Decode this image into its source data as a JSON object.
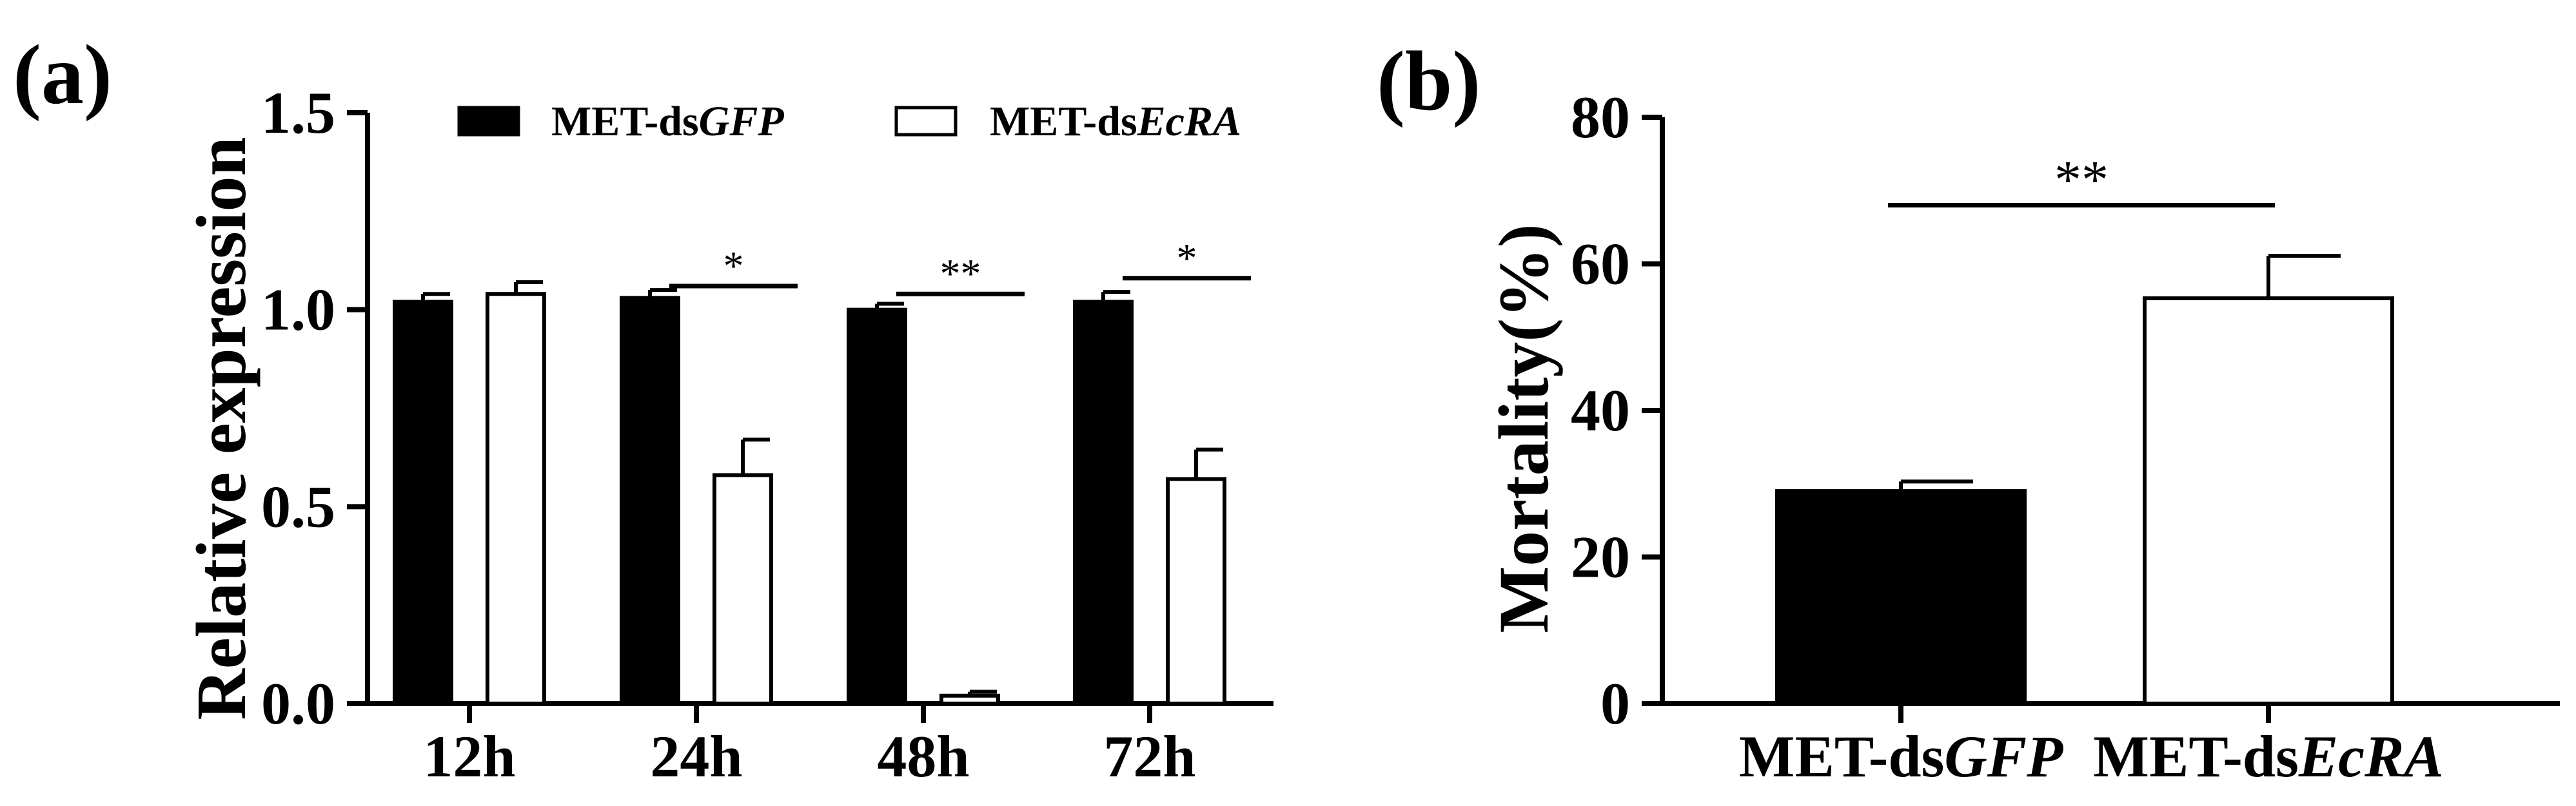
{
  "figure": {
    "panels": [
      {
        "id": "a",
        "label": "(a)",
        "chart_data": {
          "type": "bar",
          "title": "",
          "xlabel": "",
          "ylabel": "Relative expression",
          "ylim": [
            0,
            1.5
          ],
          "yticks": [
            "0.0",
            "0.5",
            "1.0",
            "1.5"
          ],
          "categories": [
            "12h",
            "24h",
            "48h",
            "72h"
          ],
          "grid": false,
          "legend_position": "top",
          "series": [
            {
              "name_prefix": "MET-ds",
              "name_gene": "GFP",
              "fill": "#000000",
              "values": [
                1.02,
                1.03,
                1.0,
                1.02
              ],
              "errors": [
                0.02,
                0.02,
                0.015,
                0.025
              ]
            },
            {
              "name_prefix": "MET-ds",
              "name_gene": "EcRA",
              "fill": "#ffffff",
              "values": [
                1.04,
                0.58,
                0.02,
                0.57
              ],
              "errors": [
                0.03,
                0.09,
                0.01,
                0.075
              ]
            }
          ],
          "annotations": [
            {
              "category_index": 1,
              "text": "*",
              "y": 1.06
            },
            {
              "category_index": 2,
              "text": "**",
              "y": 1.04
            },
            {
              "category_index": 3,
              "text": "*",
              "y": 1.08
            }
          ]
        }
      },
      {
        "id": "b",
        "label": "(b)",
        "chart_data": {
          "type": "bar",
          "title": "",
          "xlabel": "",
          "ylabel": "Mortality(%)",
          "ylim": [
            0,
            80
          ],
          "yticks": [
            "0",
            "20",
            "40",
            "60",
            "80"
          ],
          "grid": false,
          "categories": [
            {
              "prefix": "MET-ds",
              "gene": "GFP"
            },
            {
              "prefix": "MET-ds",
              "gene": "EcRA"
            }
          ],
          "values": [
            29,
            55.3
          ],
          "errors": [
            1.3,
            5.8
          ],
          "fills": [
            "#000000",
            "#ffffff"
          ],
          "annotations": [
            {
              "text": "**",
              "y": 68
            }
          ]
        }
      }
    ]
  }
}
